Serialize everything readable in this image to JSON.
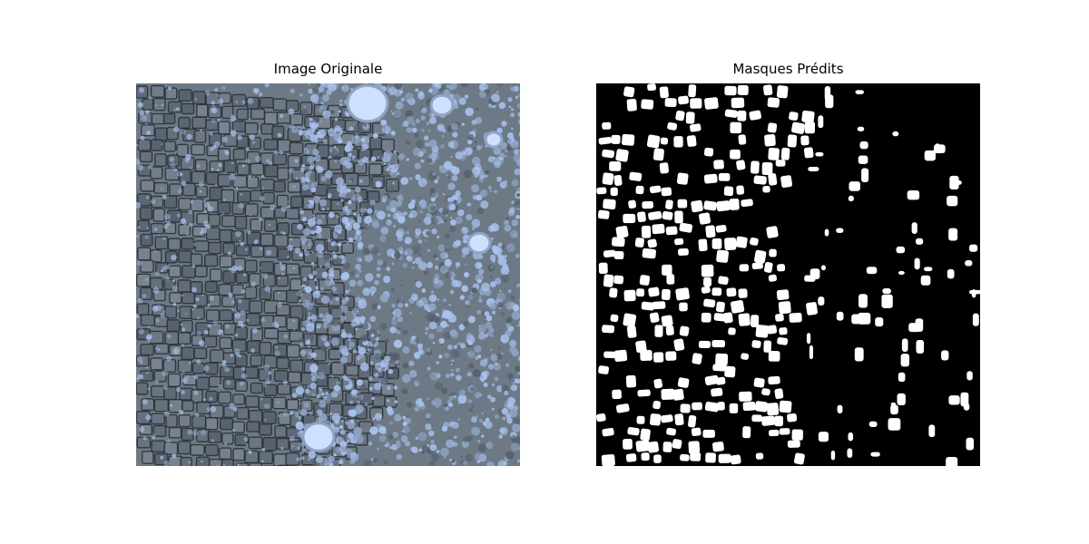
{
  "panels": [
    {
      "title": "Image Originale",
      "kind": "micrograph"
    },
    {
      "title": "Masques Prédits",
      "kind": "binary-mask"
    }
  ],
  "colors": {
    "background": "#ffffff",
    "micrograph_base": "#6d7a86",
    "micrograph_dark": "#2b3238",
    "micrograph_light": "#a9c3f0",
    "mask_background": "#000000",
    "mask_foreground": "#ffffff"
  }
}
